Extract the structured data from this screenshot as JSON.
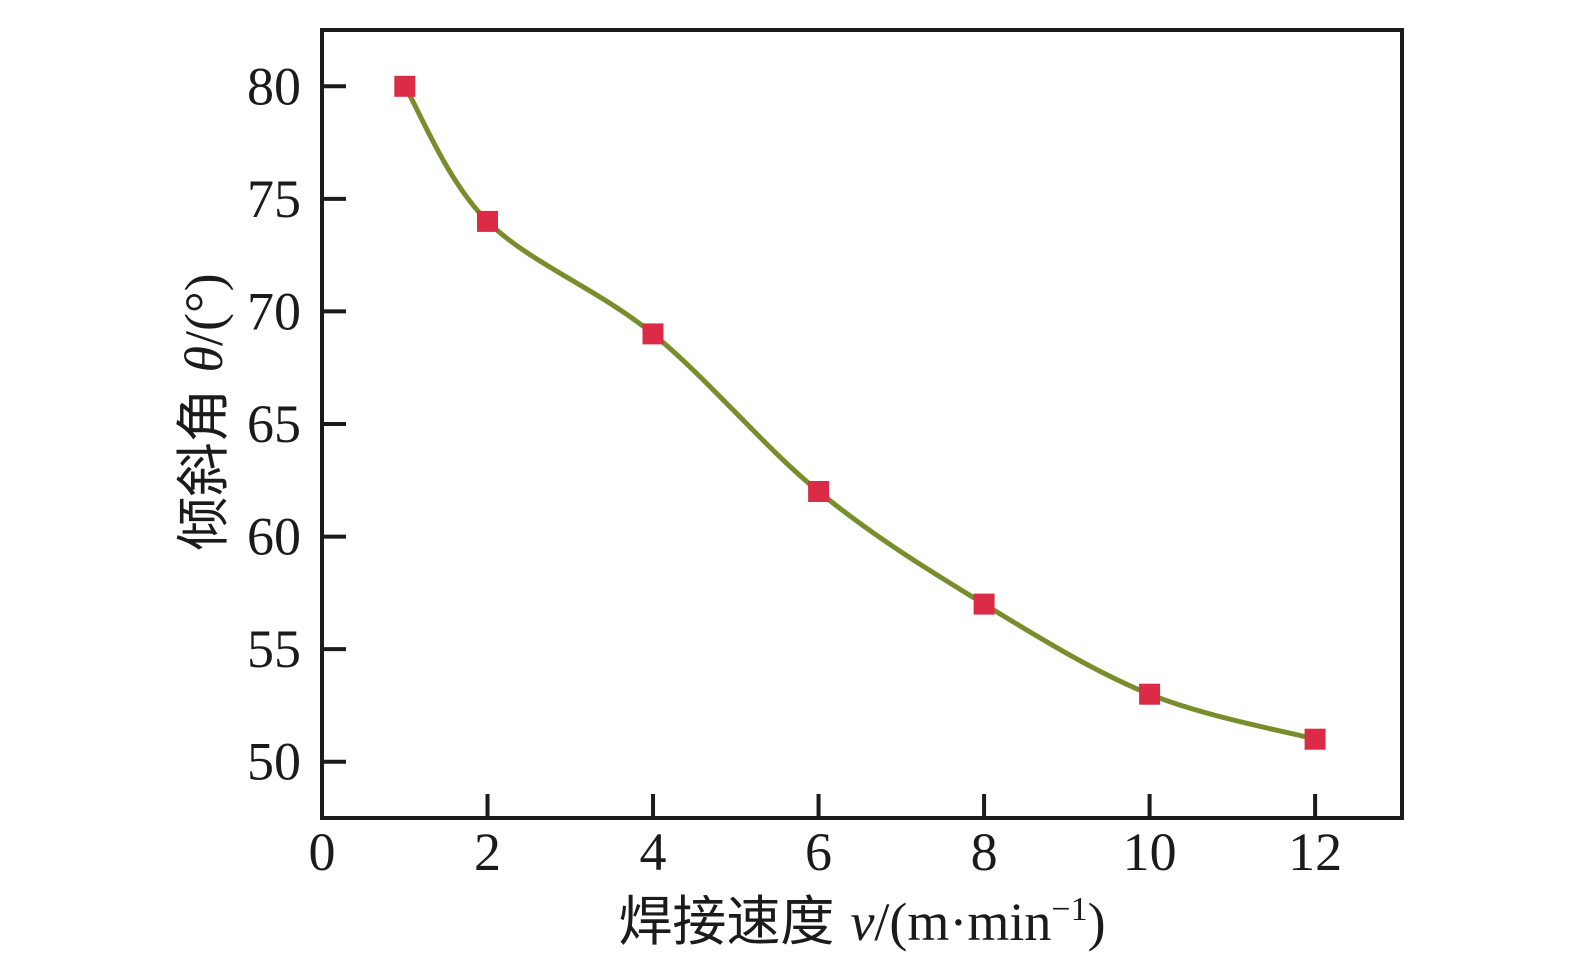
{
  "figure": {
    "background": "#ffffff"
  },
  "chart_data": {
    "type": "line",
    "title": "",
    "curve": "smooth",
    "grid": false,
    "legend": "none",
    "x": [
      1,
      2,
      4,
      6,
      8,
      10,
      12
    ],
    "y": [
      80,
      74,
      69,
      62,
      57,
      53,
      51
    ],
    "x_ticks": [
      0,
      2,
      4,
      6,
      8,
      10,
      12
    ],
    "y_ticks": [
      50,
      55,
      60,
      65,
      70,
      75,
      80
    ],
    "xlim": [
      0,
      13.05
    ],
    "ylim": [
      47.5,
      82.5
    ],
    "xlabel": "焊接速度 v/(m·min⁻¹)",
    "ylabel": "倾斜角 θ/(°)",
    "xlabel_parts": {
      "prefix": "焊接速度",
      "var": "v",
      "mid": "/(m·min",
      "sup": "−1",
      "end": ")"
    },
    "ylabel_parts": {
      "prefix": "倾斜角",
      "var": "θ",
      "suffix": "/(°)"
    },
    "colors": {
      "line": "#788e2c",
      "marker": "#dc2b46",
      "axis": "#1b1b1b",
      "text": "#1b1b1b"
    },
    "marker_shape": "square",
    "marker_size": 21,
    "line_width": 5
  }
}
